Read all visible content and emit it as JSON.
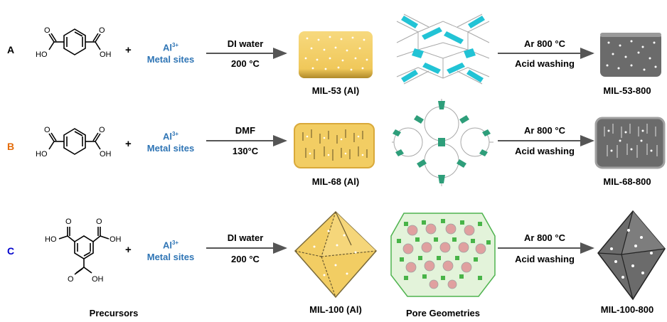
{
  "rows": [
    {
      "label": "A",
      "label_color": "#000000",
      "metal_main": "Al",
      "metal_sup": "3+",
      "metal_line2": "Metal sites",
      "cond_top": "DI water",
      "cond_bottom": "200 °C",
      "mof": "MIL-53 (Al)",
      "post_top": "Ar 800 °C",
      "post_bottom": "Acid washing",
      "carbon": "MIL-53-800"
    },
    {
      "label": "B",
      "label_color": "#e46c0a",
      "metal_main": "Al",
      "metal_sup": "3+",
      "metal_line2": "Metal sites",
      "cond_top": "DMF",
      "cond_bottom": "130°C",
      "mof": "MIL-68 (Al)",
      "post_top": "Ar 800 °C",
      "post_bottom": "Acid washing",
      "carbon": "MIL-68-800"
    },
    {
      "label": "C",
      "label_color": "#0000cc",
      "metal_main": "Al",
      "metal_sup": "3+",
      "metal_line2": "Metal sites",
      "cond_top": "DI water",
      "cond_bottom": "200 °C",
      "mof": "MIL-100 (Al)",
      "post_top": "Ar 800 °C",
      "post_bottom": "Acid washing",
      "carbon": "MIL-100-800"
    }
  ],
  "plus": "+",
  "ho": "HO",
  "oh": "OH",
  "o": "O",
  "footer": {
    "precursors": "Precursors",
    "pores": "Pore Geometries"
  },
  "colors": {
    "mof_yellow": "#f2cd63",
    "carbon_gray": "#6b6b6b",
    "metal_blue": "#2f75b5",
    "framework_cyan": "#2ec4d6",
    "framework_green": "#2e9e7a"
  }
}
